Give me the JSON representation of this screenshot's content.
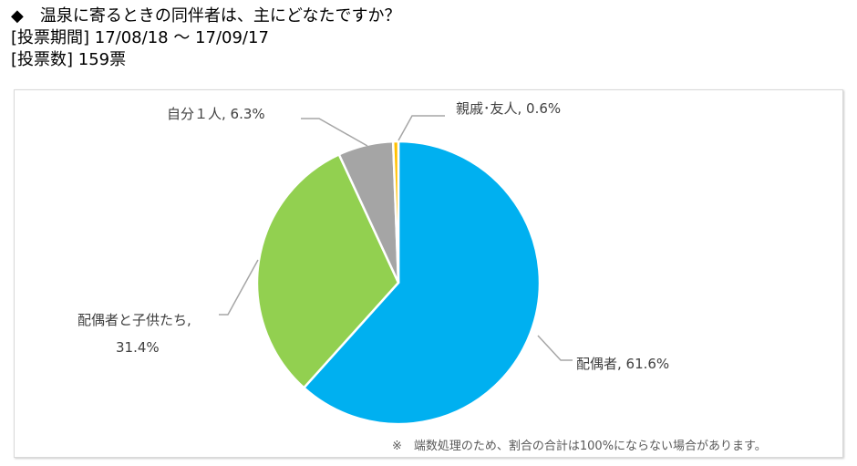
{
  "header": {
    "question": "◆　温泉に寄るときの同伴者は、主にどなたですか？",
    "period": "[投票期間] 17/08/18 ～ 17/09/17",
    "votes": "[投票数] 159票"
  },
  "chart_data": {
    "type": "pie",
    "title": "温泉に寄るときの同伴者は、主にどなたですか？",
    "slices": [
      {
        "name": "配偶者",
        "value": 61.6,
        "label": "配偶者, 61.6%",
        "color": "#00B0F0"
      },
      {
        "name": "配偶者と子供たち",
        "value": 31.4,
        "label_line1": "配偶者と子供たち,",
        "label_line2": "31.4%",
        "color": "#92D050"
      },
      {
        "name": "自分１人",
        "value": 6.3,
        "label": "自分１人, 6.3%",
        "color": "#A5A5A5"
      },
      {
        "name": "親戚・友人",
        "value": 0.6,
        "label": "親戚･友人, 0.6%",
        "color": "#FFC000"
      }
    ],
    "start": "top",
    "direction": "clockwise"
  },
  "note": "※　端数処理のため、割合の合計は100%にならない場合があります。"
}
